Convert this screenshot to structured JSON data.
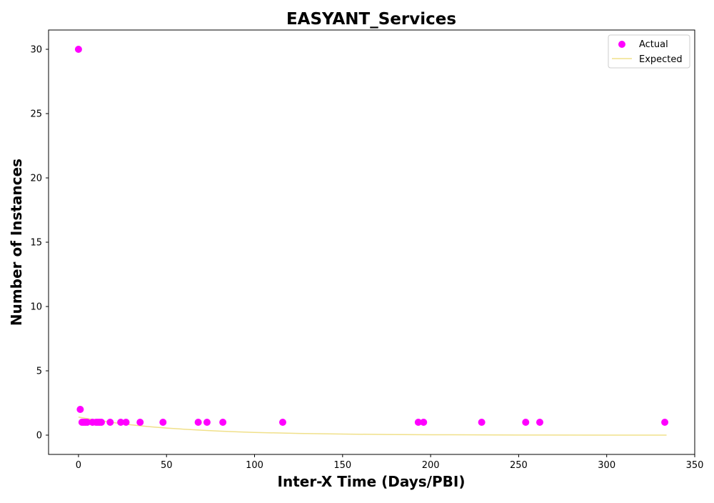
{
  "chart_data": {
    "type": "scatter",
    "title": "EASYANT_Services",
    "xlabel": "Inter-X Time (Days/PBI)",
    "ylabel": "Number of Instances",
    "xlim": [
      -17,
      350
    ],
    "ylim": [
      -1.5,
      31.5
    ],
    "xticks": [
      0,
      50,
      100,
      150,
      200,
      250,
      300,
      350
    ],
    "yticks": [
      0,
      5,
      10,
      15,
      20,
      25,
      30
    ],
    "grid": false,
    "legend_position": "top-right",
    "colors": {
      "actual": "#ff00ff",
      "expected": "#f0e08a"
    },
    "series": [
      {
        "name": "Actual",
        "kind": "scatter",
        "points": [
          {
            "x": 0,
            "y": 30
          },
          {
            "x": 1,
            "y": 2
          },
          {
            "x": 2,
            "y": 1
          },
          {
            "x": 3,
            "y": 1
          },
          {
            "x": 4,
            "y": 1
          },
          {
            "x": 5,
            "y": 1
          },
          {
            "x": 8,
            "y": 1
          },
          {
            "x": 10,
            "y": 1
          },
          {
            "x": 11,
            "y": 1
          },
          {
            "x": 12,
            "y": 1
          },
          {
            "x": 13,
            "y": 1
          },
          {
            "x": 18,
            "y": 1
          },
          {
            "x": 24,
            "y": 1
          },
          {
            "x": 27,
            "y": 1
          },
          {
            "x": 35,
            "y": 1
          },
          {
            "x": 48,
            "y": 1
          },
          {
            "x": 68,
            "y": 1
          },
          {
            "x": 73,
            "y": 1
          },
          {
            "x": 82,
            "y": 1
          },
          {
            "x": 116,
            "y": 1
          },
          {
            "x": 193,
            "y": 1
          },
          {
            "x": 196,
            "y": 1
          },
          {
            "x": 229,
            "y": 1
          },
          {
            "x": 254,
            "y": 1
          },
          {
            "x": 262,
            "y": 1
          },
          {
            "x": 333,
            "y": 1
          }
        ]
      },
      {
        "name": "Expected",
        "kind": "line",
        "points": [
          {
            "x": 0,
            "y": 1.4
          },
          {
            "x": 10,
            "y": 1.17
          },
          {
            "x": 20,
            "y": 0.97
          },
          {
            "x": 30,
            "y": 0.8
          },
          {
            "x": 40,
            "y": 0.66
          },
          {
            "x": 50,
            "y": 0.55
          },
          {
            "x": 60,
            "y": 0.46
          },
          {
            "x": 70,
            "y": 0.38
          },
          {
            "x": 80,
            "y": 0.31
          },
          {
            "x": 90,
            "y": 0.26
          },
          {
            "x": 100,
            "y": 0.21
          },
          {
            "x": 125,
            "y": 0.13
          },
          {
            "x": 150,
            "y": 0.08
          },
          {
            "x": 175,
            "y": 0.05
          },
          {
            "x": 200,
            "y": 0.03
          },
          {
            "x": 250,
            "y": 0.01
          },
          {
            "x": 300,
            "y": 0.0
          },
          {
            "x": 334,
            "y": 0.0
          }
        ]
      }
    ]
  }
}
